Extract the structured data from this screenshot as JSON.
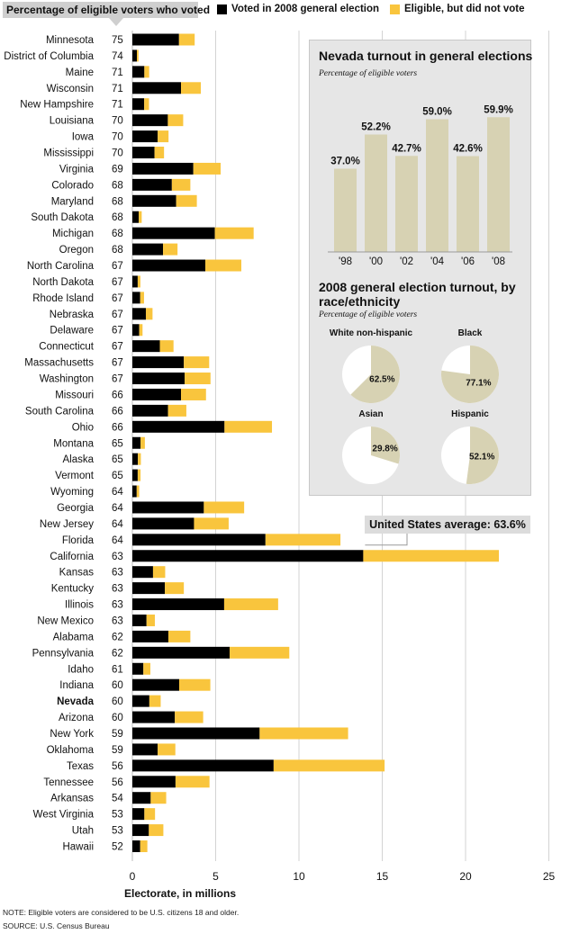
{
  "header": {
    "title": "Percentage of eligible voters who voted",
    "legend": [
      {
        "label": "Voted in 2008 general election",
        "color": "#000000"
      },
      {
        "label": "Eligible, but did not vote",
        "color": "#f9c53d"
      }
    ]
  },
  "chart_data": [
    {
      "type": "bar",
      "orientation": "horizontal",
      "stacked": true,
      "categories": [
        "Minnesota",
        "District of Columbia",
        "Maine",
        "Wisconsin",
        "New Hampshire",
        "Louisiana",
        "Iowa",
        "Mississippi",
        "Virginia",
        "Colorado",
        "Maryland",
        "South Dakota",
        "Michigan",
        "Oregon",
        "North Carolina",
        "North Dakota",
        "Rhode Island",
        "Nebraska",
        "Delaware",
        "Connecticut",
        "Massachusetts",
        "Washington",
        "Missouri",
        "South Carolina",
        "Ohio",
        "Montana",
        "Alaska",
        "Vermont",
        "Wyoming",
        "Georgia",
        "New Jersey",
        "Florida",
        "California",
        "Kansas",
        "Kentucky",
        "Illinois",
        "New Mexico",
        "Alabama",
        "Pennsylvania",
        "Idaho",
        "Indiana",
        "Nevada",
        "Arizona",
        "New York",
        "Oklahoma",
        "Texas",
        "Tennessee",
        "Arkansas",
        "West Virginia",
        "Utah",
        "Hawaii"
      ],
      "highlight": "Nevada",
      "percent_labels": [
        "75",
        "74",
        "71",
        "71",
        "71",
        "70",
        "70",
        "70",
        "69",
        "68",
        "68",
        "68",
        "68",
        "68",
        "67",
        "67",
        "67",
        "67",
        "67",
        "67",
        "67",
        "67",
        "66",
        "66",
        "66",
        "65",
        "65",
        "65",
        "64",
        "64",
        "64",
        "64",
        "63",
        "63",
        "63",
        "63",
        "63",
        "62",
        "62",
        "61",
        "60",
        "60",
        "60",
        "59",
        "59",
        "56",
        "56",
        "54",
        "53",
        "53",
        "52"
      ],
      "series": [
        {
          "name": "Voted in 2008 general election",
          "color": "#000000",
          "values": [
            2.8,
            0.27,
            0.72,
            2.92,
            0.71,
            2.13,
            1.52,
            1.33,
            3.66,
            2.37,
            2.63,
            0.38,
            4.95,
            1.84,
            4.38,
            0.32,
            0.47,
            0.81,
            0.41,
            1.65,
            3.09,
            3.14,
            2.92,
            2.14,
            5.53,
            0.49,
            0.33,
            0.32,
            0.26,
            4.29,
            3.7,
            7.99,
            13.86,
            1.24,
            1.95,
            5.51,
            0.85,
            2.16,
            5.84,
            0.66,
            2.81,
            1.02,
            2.55,
            7.64,
            1.52,
            8.48,
            2.59,
            1.1,
            0.72,
            0.99,
            0.47
          ]
        },
        {
          "name": "Eligible, but did not vote",
          "color": "#f9c53d",
          "values": [
            0.94,
            0.1,
            0.29,
            1.19,
            0.29,
            0.92,
            0.65,
            0.57,
            1.64,
            1.11,
            1.24,
            0.18,
            2.33,
            0.87,
            2.16,
            0.16,
            0.23,
            0.4,
            0.2,
            0.82,
            1.52,
            1.55,
            1.5,
            1.1,
            2.85,
            0.26,
            0.18,
            0.17,
            0.15,
            2.42,
            2.08,
            4.5,
            8.14,
            0.73,
            1.14,
            3.24,
            0.5,
            1.32,
            3.58,
            0.42,
            1.87,
            0.68,
            1.7,
            5.31,
            1.06,
            6.66,
            2.04,
            0.93,
            0.64,
            0.87,
            0.43
          ]
        }
      ],
      "xlabel": "Electorate, in millions",
      "xticks": [
        "0",
        "5",
        "10",
        "15",
        "20",
        "25"
      ],
      "xlim": [
        0,
        25
      ],
      "grid": "vertical"
    },
    {
      "type": "bar",
      "title": "Nevada turnout in general elections",
      "subtitle": "Percentage of eligible voters",
      "categories": [
        "'98",
        "'00",
        "'02",
        "'04",
        "'06",
        "'08"
      ],
      "values": [
        37.0,
        52.2,
        42.7,
        59.0,
        42.6,
        59.9
      ],
      "value_labels": [
        "37.0%",
        "52.2%",
        "42.7%",
        "59.0%",
        "42.6%",
        "59.9%"
      ],
      "color": "#d7d2b3",
      "ylim": [
        0,
        70
      ]
    },
    {
      "type": "pie",
      "title": "2008 general election turnout, by race/ethnicity",
      "subtitle": "Percentage of eligible voters",
      "pies": [
        {
          "label": "White non-hispanic",
          "value": 62.5,
          "value_label": "62.5%"
        },
        {
          "label": "Black",
          "value": 77.1,
          "value_label": "77.1%"
        },
        {
          "label": "Asian",
          "value": 29.8,
          "value_label": "29.8%"
        },
        {
          "label": "Hispanic",
          "value": 52.1,
          "value_label": "52.1%"
        }
      ],
      "color": "#d7d2b3"
    }
  ],
  "average": {
    "label": "United States average: 63.6%"
  },
  "notes": {
    "note": "NOTE: Eligible voters are considered to be U.S. citizens 18 and older.",
    "source": "SOURCE: U.S. Census Bureau"
  }
}
